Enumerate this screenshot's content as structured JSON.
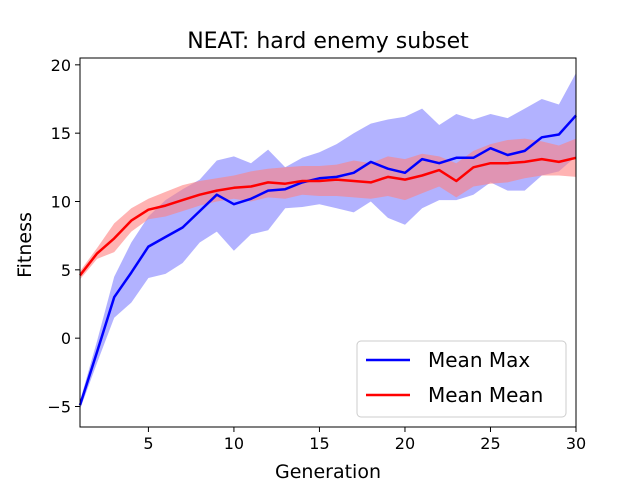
{
  "chart_data": {
    "type": "line",
    "title": "NEAT: hard enemy subset",
    "xlabel": "Generation",
    "ylabel": "Fitness",
    "xlim": [
      1,
      30
    ],
    "ylim": [
      -6.5,
      20.5
    ],
    "xticks": [
      5,
      10,
      15,
      20,
      25,
      30
    ],
    "yticks": [
      -5,
      0,
      5,
      10,
      15,
      20
    ],
    "grid": false,
    "legend_position": "lower-right",
    "x": [
      1,
      2,
      3,
      4,
      5,
      6,
      7,
      8,
      9,
      10,
      11,
      12,
      13,
      14,
      15,
      16,
      17,
      18,
      19,
      20,
      21,
      22,
      23,
      24,
      25,
      26,
      27,
      28,
      29,
      30
    ],
    "series": [
      {
        "name": "Mean Max",
        "color": "#0000ff",
        "band_color": "#7f7fff",
        "values": [
          -4.9,
          -1.0,
          3.0,
          4.8,
          6.7,
          7.4,
          8.1,
          9.3,
          10.5,
          9.8,
          10.2,
          10.8,
          10.9,
          11.4,
          11.7,
          11.8,
          12.1,
          12.9,
          12.4,
          12.1,
          13.1,
          12.8,
          13.2,
          13.2,
          13.9,
          13.4,
          13.7,
          14.7,
          14.9,
          16.3
        ],
        "lower": [
          -5.2,
          -1.8,
          1.5,
          2.6,
          4.4,
          4.7,
          5.5,
          7.0,
          7.8,
          6.4,
          7.6,
          7.9,
          9.5,
          9.6,
          9.8,
          9.5,
          9.2,
          10.0,
          8.8,
          8.3,
          9.5,
          10.1,
          10.1,
          10.5,
          11.4,
          10.8,
          10.8,
          11.9,
          12.2,
          13.3
        ],
        "upper": [
          -4.6,
          -0.2,
          4.5,
          7.0,
          8.9,
          10.1,
          10.9,
          11.6,
          13.0,
          13.3,
          12.8,
          13.8,
          12.5,
          13.2,
          13.6,
          14.2,
          15.0,
          15.7,
          16.0,
          16.2,
          16.8,
          15.6,
          16.4,
          16.0,
          16.4,
          16.1,
          16.8,
          17.5,
          17.1,
          19.4
        ]
      },
      {
        "name": "Mean Mean",
        "color": "#ff0000",
        "band_color": "#ff8080",
        "values": [
          4.6,
          6.2,
          7.3,
          8.6,
          9.4,
          9.7,
          10.1,
          10.5,
          10.8,
          11.0,
          11.1,
          11.4,
          11.3,
          11.5,
          11.5,
          11.6,
          11.5,
          11.4,
          11.8,
          11.6,
          11.9,
          12.3,
          11.5,
          12.5,
          12.8,
          12.8,
          12.9,
          13.1,
          12.9,
          13.2
        ],
        "lower": [
          4.3,
          5.8,
          6.3,
          7.8,
          8.7,
          8.9,
          9.3,
          9.7,
          10.0,
          10.2,
          10.0,
          10.3,
          10.2,
          10.5,
          10.4,
          10.4,
          10.3,
          10.2,
          10.4,
          10.1,
          10.6,
          11.1,
          10.3,
          11.1,
          11.3,
          11.4,
          11.7,
          11.9,
          11.9,
          11.8
        ],
        "upper": [
          4.9,
          6.6,
          8.4,
          9.5,
          10.2,
          10.7,
          11.2,
          11.5,
          11.7,
          11.9,
          12.2,
          12.4,
          12.5,
          12.6,
          12.6,
          12.7,
          13.0,
          12.8,
          13.3,
          13.1,
          13.5,
          13.3,
          12.8,
          13.7,
          14.2,
          14.5,
          14.6,
          14.4,
          14.1,
          14.6
        ]
      }
    ]
  }
}
